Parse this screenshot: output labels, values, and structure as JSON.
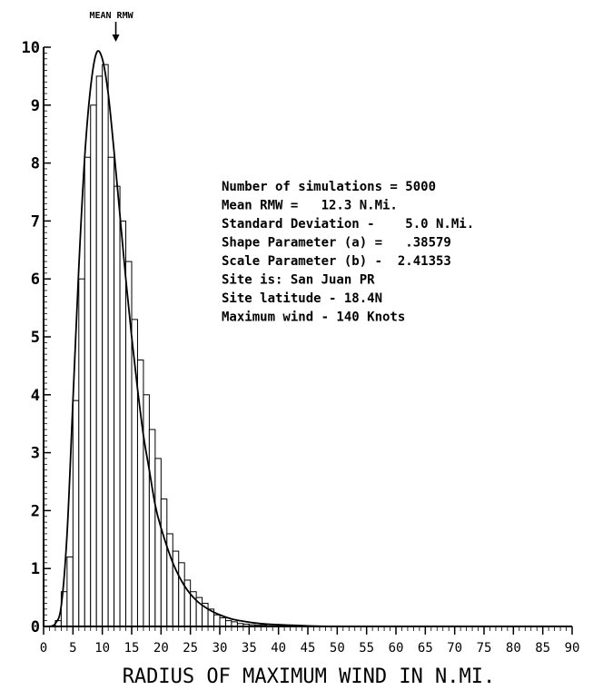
{
  "chart_data": {
    "type": "bar",
    "xlabel": "RADIUS OF MAXIMUM WIND IN N.MI.",
    "ylabel": "",
    "xlim": [
      0,
      90
    ],
    "ylim": [
      0,
      10
    ],
    "xticks": [
      "0",
      "5",
      "10",
      "15",
      "20",
      "25",
      "30",
      "35",
      "40",
      "45",
      "50",
      "55",
      "60",
      "65",
      "70",
      "75",
      "80",
      "85",
      "90"
    ],
    "yticks": [
      "0",
      "1",
      "2",
      "3",
      "4",
      "5",
      "6",
      "7",
      "8",
      "9",
      "10"
    ],
    "bin_width": 1,
    "bins_x": [
      2,
      3,
      4,
      5,
      6,
      7,
      8,
      9,
      10,
      11,
      12,
      13,
      14,
      15,
      16,
      17,
      18,
      19,
      20,
      21,
      22,
      23,
      24,
      25,
      26,
      27,
      28,
      29,
      30,
      31,
      32,
      33,
      34,
      35,
      36,
      37,
      38,
      39,
      40
    ],
    "values": [
      0.1,
      0.6,
      1.2,
      3.9,
      6.0,
      8.1,
      9.0,
      9.5,
      9.7,
      8.1,
      7.6,
      7.0,
      6.3,
      5.3,
      4.6,
      4.0,
      3.4,
      2.9,
      2.2,
      1.6,
      1.3,
      1.1,
      0.8,
      0.6,
      0.5,
      0.4,
      0.3,
      0.2,
      0.15,
      0.1,
      0.08,
      0.05,
      0.04,
      0.03,
      0.02,
      0.02,
      0.01,
      0.01,
      0.01
    ],
    "curve": {
      "x": [
        1,
        2,
        3,
        4,
        5,
        6,
        7,
        8,
        9,
        10,
        11,
        12,
        13,
        14,
        15,
        16,
        17,
        18,
        19,
        20,
        22,
        24,
        26,
        28,
        30,
        32,
        34,
        36,
        38,
        40,
        45,
        50
      ],
      "y": [
        0,
        0.05,
        0.35,
        1.6,
        3.9,
        6.2,
        8.1,
        9.3,
        9.9,
        9.8,
        9.2,
        8.2,
        7.1,
        6.0,
        5.0,
        4.1,
        3.3,
        2.7,
        2.1,
        1.7,
        1.1,
        0.7,
        0.45,
        0.3,
        0.2,
        0.13,
        0.09,
        0.06,
        0.04,
        0.03,
        0.01,
        0.0
      ]
    },
    "annotations": {
      "mean_label": "MEAN RMW",
      "mean_x": 12.3
    },
    "stats_text": [
      "Number of simulations = 5000",
      "Mean RMW =   12.3 N.Mi.",
      "Standard Deviation -    5.0 N.Mi.",
      "Shape Parameter (a) =   .38579",
      "Scale Parameter (b) -  2.41353",
      "Site is: San Juan PR",
      "Site latitude - 18.4N",
      "Maximum wind - 140 Knots"
    ],
    "grid": false,
    "legend": "none"
  }
}
